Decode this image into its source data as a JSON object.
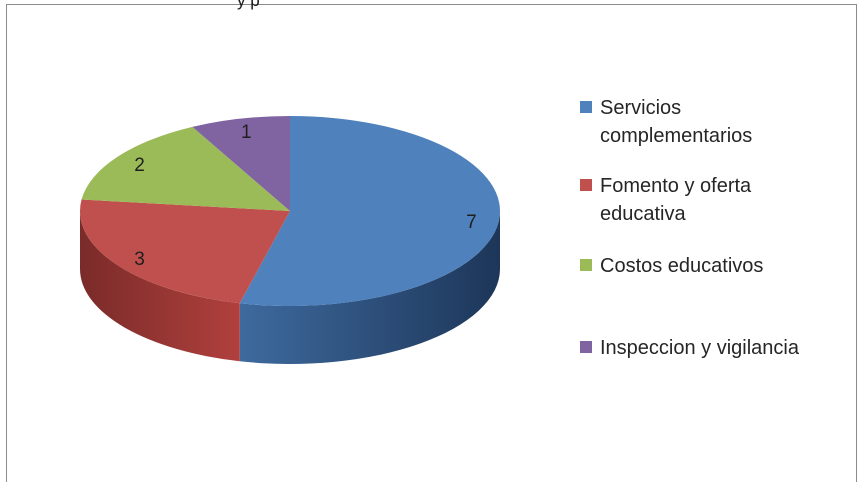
{
  "header": {
    "cut_title": "y   p"
  },
  "chart_data": {
    "type": "pie",
    "title": "",
    "labels": [
      "Servicios complementarios",
      "Fomento y oferta educativa",
      "Costos educativos",
      "Inspeccion y vigilancia"
    ],
    "values": [
      7,
      3,
      2,
      1
    ],
    "data_labels": [
      "7",
      "3",
      "2",
      "1"
    ],
    "colors": [
      "#4f81bd",
      "#c0504d",
      "#9bbb59",
      "#8064a2"
    ],
    "three_d": true,
    "legend_position": "right"
  }
}
